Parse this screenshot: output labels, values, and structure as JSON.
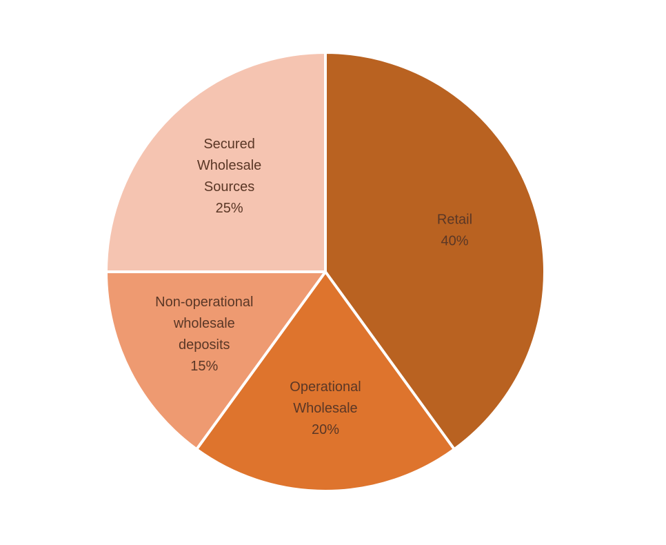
{
  "chart_data": {
    "type": "pie",
    "title": "",
    "slices": [
      {
        "label_lines": [
          "Retail"
        ],
        "value_label": "40%",
        "value": 40,
        "color": "#b96221"
      },
      {
        "label_lines": [
          "Operational",
          "Wholesale"
        ],
        "value_label": "20%",
        "value": 20,
        "color": "#de742d"
      },
      {
        "label_lines": [
          "Non-operational",
          "wholesale",
          "deposits"
        ],
        "value_label": "15%",
        "value": 15,
        "color": "#ee9a71"
      },
      {
        "label_lines": [
          "Secured",
          "Wholesale",
          "Sources"
        ],
        "value_label": "25%",
        "value": 25,
        "color": "#f5c4b1"
      }
    ],
    "start_angle_deg": 0,
    "direction": "clockwise",
    "legend": "none",
    "data_labels": "inside"
  }
}
